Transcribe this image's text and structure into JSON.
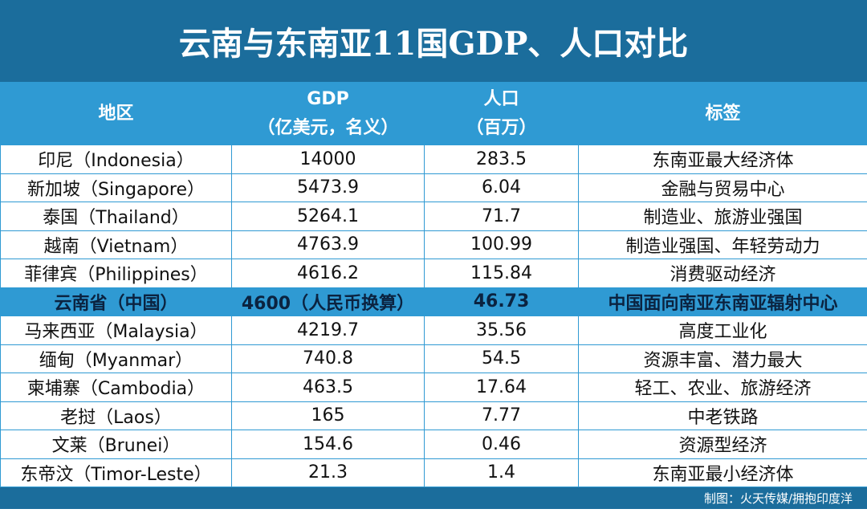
{
  "header": {
    "title": "云南与东南亚11国GDP、人口对比"
  },
  "table": {
    "columns": [
      [
        "地区"
      ],
      [
        "GDP",
        "（亿美元，名义）"
      ],
      [
        "人口",
        "（百万）"
      ],
      [
        "标签"
      ]
    ],
    "rows": [
      [
        "印尼（Indonesia）",
        "14000",
        "283.5",
        "东南亚最大经济体"
      ],
      [
        "新加坡（Singapore）",
        "5473.9",
        "6.04",
        "金融与贸易中心"
      ],
      [
        "泰国（Thailand）",
        "5264.1",
        "71.7",
        "制造业、旅游业强国"
      ],
      [
        "越南（Vietnam）",
        "4763.9",
        "100.99",
        "制造业强国、年轻劳动力"
      ],
      [
        "菲律宾（Philippines）",
        "4616.2",
        "115.84",
        "消费驱动经济"
      ],
      [
        "云南省（中国）",
        "4600（人民币换算）",
        "46.73",
        "中国面向南亚东南亚辐射中心"
      ],
      [
        "马来西亚（Malaysia）",
        "4219.7",
        "35.56",
        "高度工业化"
      ],
      [
        "缅甸（Myanmar）",
        "740.8",
        "54.5",
        "资源丰富、潜力最大"
      ],
      [
        "柬埔寨（Cambodia）",
        "463.5",
        "17.64",
        "轻工、农业、旅游经济"
      ],
      [
        "老挝（Laos）",
        "165",
        "7.77",
        "中老铁路"
      ],
      [
        "文莱（Brunei）",
        "154.6",
        "0.46",
        "资源型经济"
      ],
      [
        "东帝汶（Timor-Leste）",
        "21.3",
        "1.4",
        "东南亚最小经济体"
      ]
    ],
    "highlight_row": 5
  },
  "footer": {
    "credit": "制图：火天传媒/拥抱印度洋"
  }
}
